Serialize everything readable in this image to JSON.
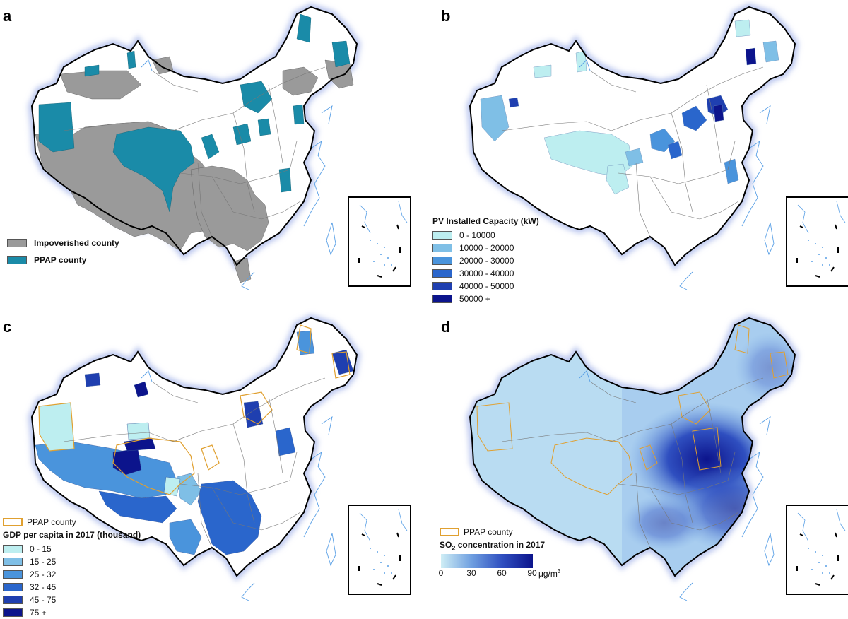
{
  "panels": [
    {
      "letter": "a",
      "legend": [
        {
          "label": "Impoverished county",
          "color": "#9a9a9a"
        },
        {
          "label": "PPAP county",
          "color": "#1a8ba8"
        }
      ]
    },
    {
      "letter": "b",
      "legend_title": "PV Installed Capacity (kW)",
      "legend": [
        {
          "label": "0 - 10000",
          "color": "#bdeef0"
        },
        {
          "label": "10000 - 20000",
          "color": "#7fbfe6"
        },
        {
          "label": "20000 - 30000",
          "color": "#4a94dc"
        },
        {
          "label": "30000 - 40000",
          "color": "#2a66cc"
        },
        {
          "label": "40000 - 50000",
          "color": "#1f3fb0"
        },
        {
          "label": "50000 +",
          "color": "#0c148c"
        }
      ]
    },
    {
      "letter": "c",
      "ppap_label": "PPAP county",
      "legend_title": "GDP per capita in 2017 (thousand)",
      "legend": [
        {
          "label": "0 - 15",
          "color": "#bdeef0"
        },
        {
          "label": "15 - 25",
          "color": "#7fbfe6"
        },
        {
          "label": "25 - 32",
          "color": "#4a94dc"
        },
        {
          "label": "32 - 45",
          "color": "#2a66cc"
        },
        {
          "label": "45 - 75",
          "color": "#1f3fb0"
        },
        {
          "label": "75 +",
          "color": "#0c148c"
        }
      ]
    },
    {
      "letter": "d",
      "ppap_label": "PPAP county",
      "legend_title_prefix": "SO",
      "legend_title_sub": "2",
      "legend_title_suffix": " concentration in 2017",
      "ramp_ticks": [
        "0",
        "30",
        "60",
        "90"
      ],
      "ramp_unit": "μg/m",
      "ramp_unit_sup": "3",
      "ramp_colors": [
        "#cfeef5",
        "#6f9fe0",
        "#2f4fc0",
        "#0c148c"
      ]
    }
  ],
  "colors": {
    "land_base": "#ffffff",
    "border": "#000000",
    "glow": "#b8c4ee",
    "province_line": "#777777",
    "coast_line": "#5aa0e6",
    "ppap_outline": "#e0a030"
  }
}
